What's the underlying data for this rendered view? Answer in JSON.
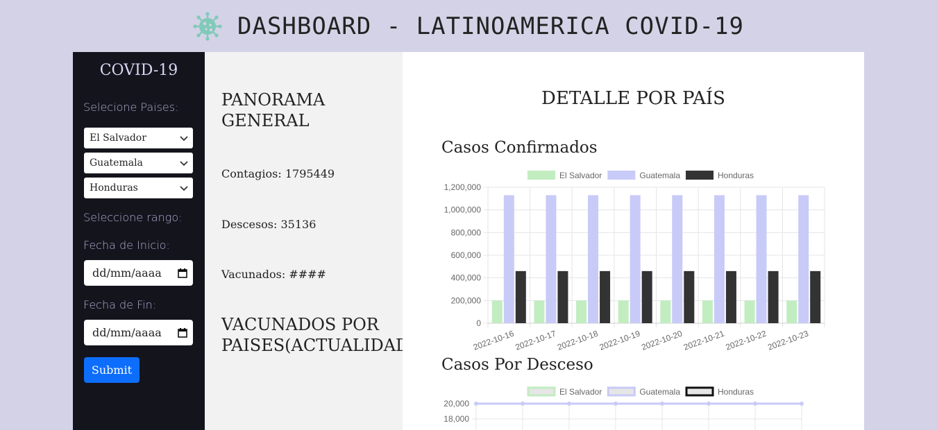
{
  "header": {
    "title": "DASHBOARD - LATINOAMERICA COVID-19",
    "logo_icon": "virus-icon",
    "logo_color": "#7fcab8"
  },
  "sidebar": {
    "brand": "COVID-19",
    "countries_label": "Selecione Paises:",
    "country_selects": [
      "El Salvador",
      "Guatemala",
      "Honduras"
    ],
    "range_label": "Seleccione rango:",
    "start_label": "Fecha de Inicio:",
    "start_placeholder": "dd/mm/aaaa",
    "end_label": "Fecha de Fin:",
    "end_placeholder": "dd/mm/aaaa",
    "submit_label": "Submit",
    "submit_color": "#0d6efd"
  },
  "panorama": {
    "title": "PANORAMA GENERAL",
    "contagios": "Contagios: 1795449",
    "descesos": "Descesos: 35136",
    "vacunados": "Vacunados: ####",
    "vac_title": "VACUNADOS POR PAISES(ACTUALIDAD)"
  },
  "detail": {
    "title": "DETALLE POR PAÍS",
    "confirmed_title": "Casos Confirmados",
    "deaths_title": "Casos Por Desceso"
  },
  "chart_data": [
    {
      "type": "bar",
      "categories": [
        "2022-10-16",
        "2022-10-17",
        "2022-10-18",
        "2022-10-19",
        "2022-10-20",
        "2022-10-21",
        "2022-10-22",
        "2022-10-23"
      ],
      "series": [
        {
          "name": "El Salvador",
          "color": "#c1edc1",
          "values": [
            200000,
            200000,
            200000,
            200000,
            200000,
            200000,
            200000,
            200000
          ]
        },
        {
          "name": "Guatemala",
          "color": "#c8caf7",
          "values": [
            1130000,
            1130000,
            1130000,
            1130000,
            1130000,
            1130000,
            1130000,
            1130000
          ]
        },
        {
          "name": "Honduras",
          "color": "#333333",
          "values": [
            460000,
            460000,
            460000,
            460000,
            460000,
            460000,
            460000,
            460000
          ]
        }
      ],
      "ylim": [
        0,
        1200000
      ],
      "yticks": [
        "0",
        "200,000",
        "400,000",
        "600,000",
        "800,000",
        "1,000,000",
        "1,200,000"
      ],
      "legend": "top-center",
      "grid": true
    },
    {
      "type": "line",
      "series": [
        {
          "name": "El Salvador",
          "color": "#c1edc1"
        },
        {
          "name": "Guatemala",
          "color": "#c8caf7",
          "values": [
            20000,
            20000,
            20000,
            20000,
            20000,
            20000,
            20000,
            20000
          ]
        },
        {
          "name": "Honduras",
          "color": "#111111"
        }
      ],
      "yticks_visible": [
        "20,000",
        "18,000"
      ],
      "legend": "top-center",
      "grid": true
    }
  ]
}
